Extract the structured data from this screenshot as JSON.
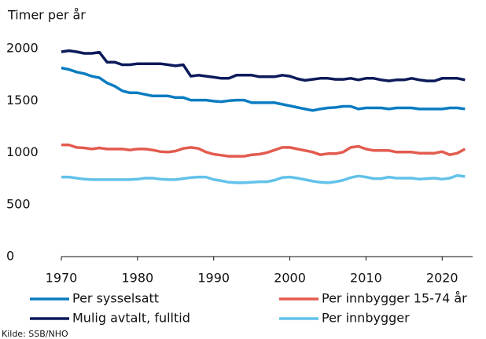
{
  "chart_data": {
    "type": "line",
    "subtitle": "Timer per år",
    "source": "Kilde: SSB/NHO",
    "x": [
      1970,
      1971,
      1972,
      1973,
      1974,
      1975,
      1976,
      1977,
      1978,
      1979,
      1980,
      1981,
      1982,
      1983,
      1984,
      1985,
      1986,
      1987,
      1988,
      1989,
      1990,
      1991,
      1992,
      1993,
      1994,
      1995,
      1996,
      1997,
      1998,
      1999,
      2000,
      2001,
      2002,
      2003,
      2004,
      2005,
      2006,
      2007,
      2008,
      2009,
      2010,
      2011,
      2012,
      2013,
      2014,
      2015,
      2016,
      2017,
      2018,
      2019,
      2020,
      2021,
      2022,
      2023
    ],
    "series": [
      {
        "name": "Per sysselsatt",
        "color": "#0a7cc1",
        "values": [
          1815,
          1800,
          1775,
          1760,
          1735,
          1720,
          1670,
          1640,
          1595,
          1575,
          1575,
          1560,
          1545,
          1545,
          1545,
          1530,
          1530,
          1505,
          1505,
          1505,
          1495,
          1490,
          1500,
          1505,
          1505,
          1480,
          1480,
          1480,
          1480,
          1465,
          1450,
          1435,
          1420,
          1405,
          1420,
          1430,
          1435,
          1445,
          1445,
          1420,
          1430,
          1430,
          1430,
          1420,
          1430,
          1430,
          1430,
          1420,
          1420,
          1420,
          1420,
          1430,
          1430,
          1420
        ]
      },
      {
        "name": "Per innbygger 15-74 år",
        "color": "#e35b4f",
        "values": [
          1075,
          1075,
          1050,
          1045,
          1035,
          1045,
          1035,
          1035,
          1035,
          1025,
          1035,
          1035,
          1025,
          1010,
          1005,
          1015,
          1040,
          1050,
          1040,
          1005,
          985,
          975,
          965,
          965,
          965,
          980,
          985,
          1000,
          1025,
          1050,
          1050,
          1035,
          1020,
          1005,
          980,
          990,
          990,
          1005,
          1050,
          1060,
          1035,
          1020,
          1020,
          1020,
          1005,
          1005,
          1005,
          995,
          995,
          995,
          1010,
          980,
          995,
          1035
        ]
      },
      {
        "name": "Mulig avtalt, fulltid",
        "color": "#0b1a5a",
        "values": [
          1970,
          1980,
          1970,
          1955,
          1955,
          1965,
          1870,
          1870,
          1845,
          1845,
          1855,
          1855,
          1855,
          1855,
          1845,
          1835,
          1845,
          1735,
          1745,
          1735,
          1725,
          1715,
          1715,
          1745,
          1745,
          1745,
          1730,
          1730,
          1730,
          1745,
          1735,
          1710,
          1695,
          1705,
          1715,
          1715,
          1705,
          1705,
          1715,
          1700,
          1715,
          1715,
          1700,
          1690,
          1700,
          1700,
          1715,
          1700,
          1690,
          1690,
          1715,
          1715,
          1715,
          1700
        ]
      },
      {
        "name": "Per innbygger",
        "color": "#62c2ea",
        "values": [
          765,
          765,
          755,
          745,
          740,
          740,
          740,
          740,
          740,
          740,
          745,
          755,
          755,
          745,
          740,
          740,
          750,
          760,
          765,
          765,
          740,
          730,
          715,
          710,
          710,
          715,
          720,
          720,
          735,
          760,
          765,
          755,
          740,
          725,
          715,
          710,
          720,
          735,
          760,
          775,
          765,
          750,
          750,
          765,
          755,
          755,
          755,
          745,
          750,
          755,
          745,
          755,
          780,
          770
        ]
      }
    ],
    "xlim": [
      1970,
      2024
    ],
    "xticks": [
      1970,
      1980,
      1990,
      2000,
      2010,
      2020
    ],
    "ylim": [
      0,
      2000
    ],
    "yticks": [
      0,
      500,
      1000,
      1500,
      2000
    ],
    "grid": false
  }
}
